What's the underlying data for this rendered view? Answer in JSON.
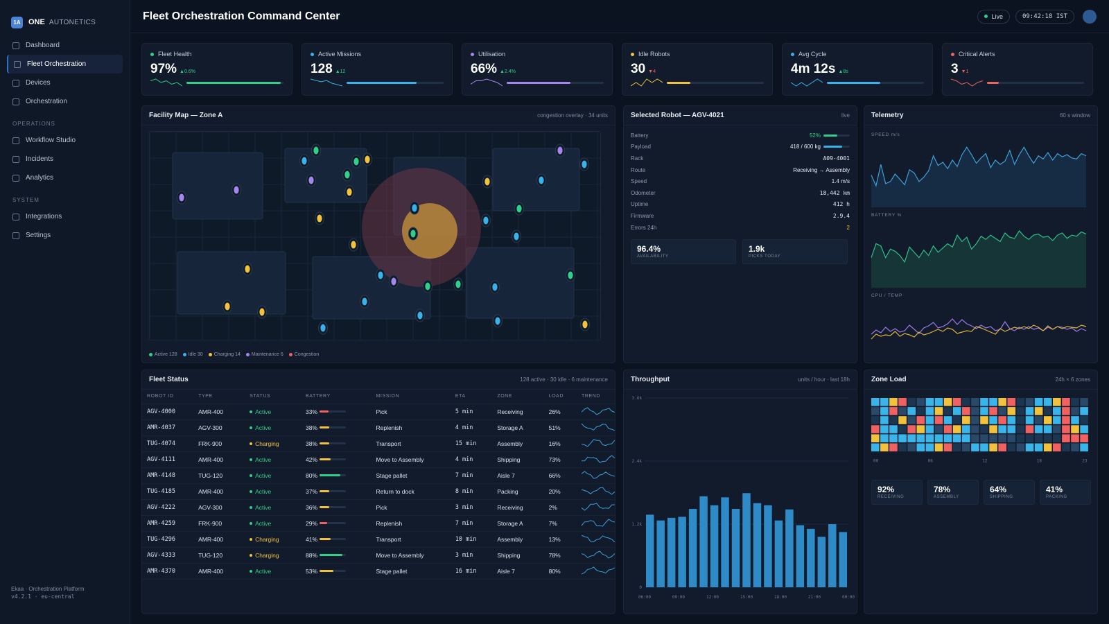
{
  "brand": {
    "logo": "1A",
    "name": "ONE",
    "sub": "AUTONETICS"
  },
  "nav": {
    "main": [
      {
        "label": "Dashboard",
        "active": false
      },
      {
        "label": "Fleet Orchestration",
        "active": true
      },
      {
        "label": "Devices",
        "active": false
      },
      {
        "label": "Orchestration",
        "active": false
      }
    ],
    "ops_title": "OPERATIONS",
    "ops": [
      {
        "label": "Workflow Studio"
      },
      {
        "label": "Incidents"
      },
      {
        "label": "Analytics"
      }
    ],
    "sys_title": "SYSTEM",
    "sys": [
      {
        "label": "Integrations"
      },
      {
        "label": "Settings"
      }
    ]
  },
  "footer": {
    "line1": "Ekaa · Orchestration Platform",
    "line2": "v4.2.1 · eu-central"
  },
  "header": {
    "title": "Fleet Orchestration Command Center",
    "live": "Live",
    "clock": "09:42:18 IST"
  },
  "kpis": [
    {
      "label": "Fleet Health",
      "value": "97%",
      "delta": "▲0.6%",
      "color": "#2fd08a",
      "delta_color": "#2fd08a",
      "progress": 0.97,
      "spark": [
        5,
        6,
        4,
        5,
        3,
        4,
        2
      ]
    },
    {
      "label": "Active Missions",
      "value": "128",
      "delta": "▲12",
      "color": "#38b2ea",
      "delta_color": "#2fd08a",
      "progress": 0.72,
      "spark": [
        7,
        6,
        5,
        6,
        4,
        3,
        2
      ]
    },
    {
      "label": "Utilisation",
      "value": "66%",
      "delta": "▲2.4%",
      "color": "#a487ee",
      "delta_color": "#2fd08a",
      "progress": 0.66,
      "spark": [
        4,
        6,
        6,
        7,
        6,
        5,
        3
      ]
    },
    {
      "label": "Idle Robots",
      "value": "30",
      "delta": "▼4",
      "color": "#f2c13d",
      "delta_color": "#f06262",
      "progress": 0.24,
      "spark": [
        4,
        5,
        4,
        6,
        5,
        6,
        5
      ]
    },
    {
      "label": "Avg Cycle",
      "value": "4m 12s",
      "delta": "▲8s",
      "color": "#38b2ea",
      "delta_color": "#2fd08a",
      "progress": 0.55,
      "spark": [
        5,
        4,
        5,
        4,
        5,
        6,
        5
      ]
    },
    {
      "label": "Critical Alerts",
      "value": "3",
      "delta": "▼1",
      "color": "#f06262",
      "delta_color": "#f06262",
      "progress": 0.12,
      "spark": [
        6,
        5,
        3,
        4,
        2,
        4,
        5
      ]
    }
  ],
  "map": {
    "title": "Facility Map — Zone A",
    "meta": "congestion overlay · 34 units",
    "legend": [
      {
        "label": "Active 128",
        "color": "#2fd08a"
      },
      {
        "label": "Idle 30",
        "color": "#38b2ea"
      },
      {
        "label": "Charging 14",
        "color": "#f2c13d"
      },
      {
        "label": "Maintenance 6",
        "color": "#a487ee"
      },
      {
        "label": "Congestion",
        "color": "#f06262"
      }
    ]
  },
  "robot": {
    "title": "Selected Robot — AGV-4021",
    "meta": "live",
    "fields": [
      {
        "k": "Battery",
        "v": "52%",
        "bar": 0.52,
        "color": "#2fd08a"
      },
      {
        "k": "Payload",
        "v": "418 / 600 kg",
        "bar": 0.7,
        "color": "#38b2ea"
      },
      {
        "k": "Rack",
        "v": "A09-4001",
        "mono": true
      },
      {
        "k": "Route",
        "v": "Receiving → Assembly"
      },
      {
        "k": "Speed",
        "v": "1.4 m/s"
      },
      {
        "k": "Odometer",
        "v": "18,442 km",
        "mono": true
      },
      {
        "k": "Uptime",
        "v": "412 h",
        "mono": true
      },
      {
        "k": "Firmware",
        "v": "2.9.4",
        "mono": true
      },
      {
        "k": "Errors 24h",
        "v": "2",
        "color": "#f2c13d"
      }
    ],
    "stats": [
      {
        "value": "96.4%",
        "label": "AVAILABILITY"
      },
      {
        "value": "1.9k",
        "label": "PICKS TODAY"
      }
    ]
  },
  "telemetry": {
    "title": "Telemetry",
    "meta": "60 s window",
    "labels": [
      "SPEED m/s",
      "BATTERY %",
      "CPU / TEMP"
    ]
  },
  "fleet": {
    "title": "Fleet Status",
    "meta": "128 active · 30 idle · 6 maintenance",
    "columns": [
      "ROBOT ID",
      "TYPE",
      "STATUS",
      "BATTERY",
      "MISSION",
      "ETA",
      "ZONE",
      "LOAD",
      "TREND"
    ],
    "rows": [
      {
        "id": "AGV-4000",
        "type": "AMR-400",
        "status": "Active",
        "battery": "33%",
        "bat": 0.33,
        "mission": "Pick",
        "eta": "5 min",
        "zone": "Receiving",
        "load": "26%"
      },
      {
        "id": "AMR-4037",
        "type": "AGV-300",
        "status": "Active",
        "battery": "38%",
        "bat": 0.38,
        "mission": "Replenish",
        "eta": "4 min",
        "zone": "Storage A",
        "load": "51%"
      },
      {
        "id": "TUG-4074",
        "type": "FRK-900",
        "status": "Charging",
        "battery": "38%",
        "bat": 0.38,
        "mission": "Transport",
        "eta": "15 min",
        "zone": "Assembly",
        "load": "16%"
      },
      {
        "id": "AGV-4111",
        "type": "AMR-400",
        "status": "Active",
        "battery": "42%",
        "bat": 0.42,
        "mission": "Move to Assembly",
        "eta": "4 min",
        "zone": "Shipping",
        "load": "73%"
      },
      {
        "id": "AMR-4148",
        "type": "TUG-120",
        "status": "Active",
        "battery": "80%",
        "bat": 0.8,
        "mission": "Stage pallet",
        "eta": "7 min",
        "zone": "Aisle 7",
        "load": "66%"
      },
      {
        "id": "TUG-4185",
        "type": "AMR-400",
        "status": "Active",
        "battery": "37%",
        "bat": 0.37,
        "mission": "Return to dock",
        "eta": "8 min",
        "zone": "Packing",
        "load": "20%"
      },
      {
        "id": "AGV-4222",
        "type": "AGV-300",
        "status": "Active",
        "battery": "36%",
        "bat": 0.36,
        "mission": "Pick",
        "eta": "3 min",
        "zone": "Receiving",
        "load": "2%"
      },
      {
        "id": "AMR-4259",
        "type": "FRK-900",
        "status": "Active",
        "battery": "29%",
        "bat": 0.29,
        "mission": "Replenish",
        "eta": "7 min",
        "zone": "Storage A",
        "load": "7%"
      },
      {
        "id": "TUG-4296",
        "type": "AMR-400",
        "status": "Charging",
        "battery": "41%",
        "bat": 0.41,
        "mission": "Transport",
        "eta": "10 min",
        "zone": "Assembly",
        "load": "13%"
      },
      {
        "id": "AGV-4333",
        "type": "TUG-120",
        "status": "Charging",
        "battery": "88%",
        "bat": 0.88,
        "mission": "Move to Assembly",
        "eta": "3 min",
        "zone": "Shipping",
        "load": "78%"
      },
      {
        "id": "AMR-4370",
        "type": "AMR-400",
        "status": "Active",
        "battery": "53%",
        "bat": 0.53,
        "mission": "Stage pallet",
        "eta": "16 min",
        "zone": "Aisle 7",
        "load": "80%"
      }
    ]
  },
  "throughput": {
    "title": "Throughput",
    "meta": "units / hour · last 18h"
  },
  "zone_load": {
    "title": "Zone Load",
    "meta": "24h × 6 zones",
    "hours": [
      "00",
      "06",
      "12",
      "18",
      "23"
    ],
    "cards": [
      {
        "value": "92%",
        "label": "RECEIVING"
      },
      {
        "value": "78%",
        "label": "ASSEMBLY"
      },
      {
        "value": "64%",
        "label": "SHIPPING"
      },
      {
        "value": "41%",
        "label": "PACKING"
      }
    ]
  },
  "chart_data": [
    {
      "type": "bar",
      "title": "Throughput",
      "x": [
        "06:00",
        "07:00",
        "08:00",
        "09:00",
        "10:00",
        "11:00",
        "12:00",
        "13:00",
        "14:00",
        "15:00",
        "16:00",
        "17:00",
        "18:00",
        "19:00",
        "20:00",
        "21:00",
        "22:00",
        "23:00",
        "00:00"
      ],
      "xticks": [
        "06:00",
        "09:00",
        "12:00",
        "15:00",
        "18:00",
        "21:00",
        "00:00"
      ],
      "values": [
        1380,
        1270,
        1320,
        1340,
        1490,
        1730,
        1560,
        1710,
        1490,
        1790,
        1600,
        1560,
        1270,
        1480,
        1180,
        1110,
        960,
        1200,
        1050
      ],
      "yticks": [
        "3.6k",
        "2.4k",
        "1.2k",
        "0"
      ],
      "ylim": [
        0,
        3600
      ],
      "grid": true
    },
    {
      "type": "line",
      "title": "Telemetry",
      "series": [
        {
          "values": [
            4,
            3,
            5,
            3.2,
            3.4,
            4.1,
            3.6,
            3.1,
            4.5,
            4.2,
            3.4,
            3.8,
            4.4,
            5.8,
            4.9,
            5.2,
            4.6,
            5.4,
            4.8,
            5.9,
            6.6,
            5.9,
            5.1,
            5.6,
            6.0,
            4.7,
            5.4,
            5.0,
            5.3,
            6.3,
            5.0,
            5.9,
            6.6,
            5.8,
            5.1,
            5.8,
            5.5,
            6.1,
            5.4,
            6.0,
            5.7,
            5.9,
            5.6,
            5.5,
            6.0,
            5.8
          ]
        },
        {
          "values": [
            3.8,
            5.1,
            4.9,
            3.8,
            4.6,
            4.4,
            4.0,
            3.4,
            4.8,
            4.3,
            3.8,
            4.5,
            4.0,
            4.9,
            4.3,
            4.7,
            5.1,
            4.8,
            5.9,
            5.3,
            5.7,
            4.6,
            5.1,
            5.8,
            5.5,
            5.9,
            5.6,
            5.3,
            6.1,
            5.7,
            5.6,
            6.3,
            5.8,
            5.5,
            5.9,
            6.0,
            5.7,
            5.8,
            5.4,
            5.9,
            6.1,
            5.6,
            5.9,
            5.8,
            6.2,
            6.0
          ]
        },
        {
          "values": [
            2.5,
            3.1,
            2.7,
            3.5,
            2.9,
            3.3,
            2.8,
            3.0,
            3.8,
            3.2,
            2.6,
            3.4,
            3.7,
            4.2,
            3.4,
            3.6,
            4.0,
            4.7,
            3.9,
            4.6,
            4.0,
            3.7,
            3.3,
            3.8,
            3.4,
            3.6,
            3.0,
            3.2,
            4.3,
            3.3,
            3.0,
            3.5,
            3.2,
            3.6,
            3.2,
            3.4,
            3.0,
            3.5,
            3.2,
            3.6,
            3.5,
            3.2,
            3.4,
            2.9,
            3.3,
            3.0
          ]
        },
        {
          "values": [
            1.8,
            2.5,
            2.2,
            2.4,
            2.3,
            2.9,
            2.2,
            2.6,
            2.4,
            2.1,
            2.8,
            2.4,
            2.6,
            2.9,
            3.2,
            2.9,
            3.4,
            3.2,
            2.6,
            2.8,
            3.0,
            2.9,
            3.6,
            3.4,
            3.1,
            2.8,
            2.5,
            3.3,
            2.9,
            3.2,
            3.5,
            3.3,
            3.6,
            3.3,
            3.8,
            3.5,
            3.0,
            3.7,
            3.2,
            3.6,
            3.3,
            3.6,
            3.5,
            3.4,
            3.8,
            3.6
          ]
        }
      ]
    }
  ]
}
